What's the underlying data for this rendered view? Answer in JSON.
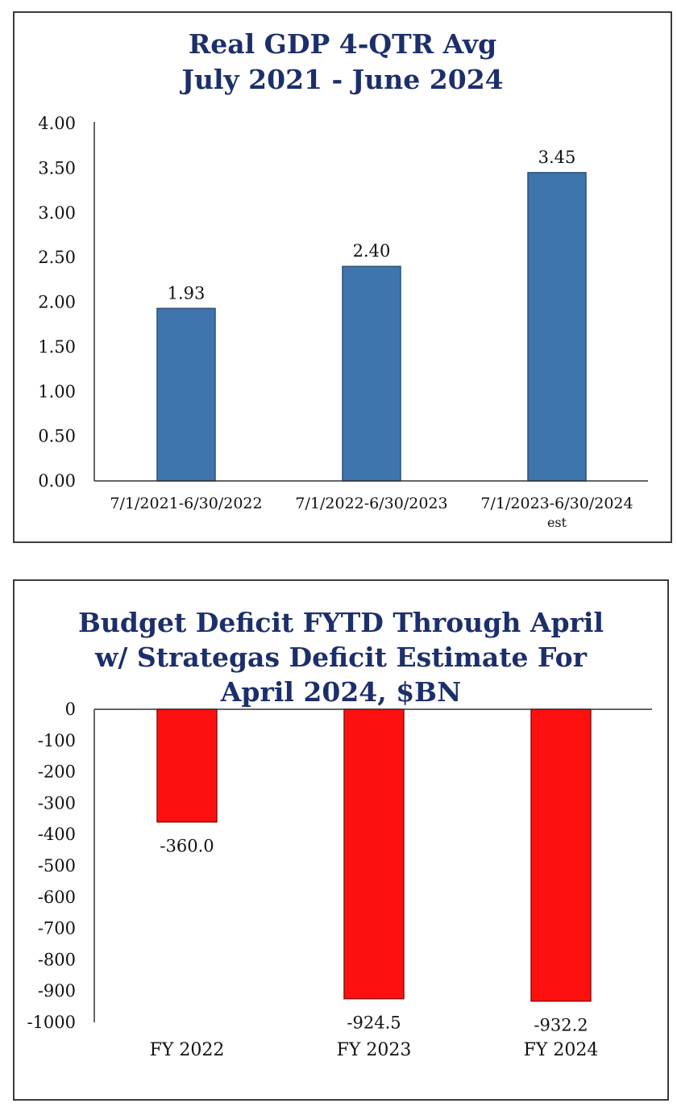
{
  "chart_data": [
    {
      "type": "bar",
      "title_lines": [
        "Real GDP 4-QTR Avg",
        "July 2021 - June 2024"
      ],
      "categories": [
        "7/1/2021-6/30/2022",
        "7/1/2022-6/30/2023",
        "7/1/2023-6/30/2024"
      ],
      "category_sublabels": [
        "",
        "",
        "est"
      ],
      "values": [
        1.93,
        2.4,
        3.45
      ],
      "data_labels": [
        "1.93",
        "2.40",
        "3.45"
      ],
      "ylim": [
        0,
        4
      ],
      "y_ticks": [
        "0.00",
        "0.50",
        "1.00",
        "1.50",
        "2.00",
        "2.50",
        "3.00",
        "3.50",
        "4.00"
      ],
      "bar_color": "#3f75ad",
      "grid": false,
      "legend": "none"
    },
    {
      "type": "bar",
      "title_lines": [
        "Budget Deficit FYTD Through April",
        "w/ Strategas Deficit Estimate For",
        "April 2024, $BN"
      ],
      "categories": [
        "FY 2022",
        "FY 2023",
        "FY 2024"
      ],
      "values": [
        -360.0,
        -924.5,
        -932.2
      ],
      "data_labels": [
        "-360.0",
        "-924.5",
        "-932.2"
      ],
      "ylim": [
        -1000,
        0
      ],
      "y_ticks": [
        "0",
        "-100",
        "-200",
        "-300",
        "-400",
        "-500",
        "-600",
        "-700",
        "-800",
        "-900",
        "-1000"
      ],
      "bar_color": "#ff1010",
      "grid": false,
      "legend": "none"
    }
  ]
}
